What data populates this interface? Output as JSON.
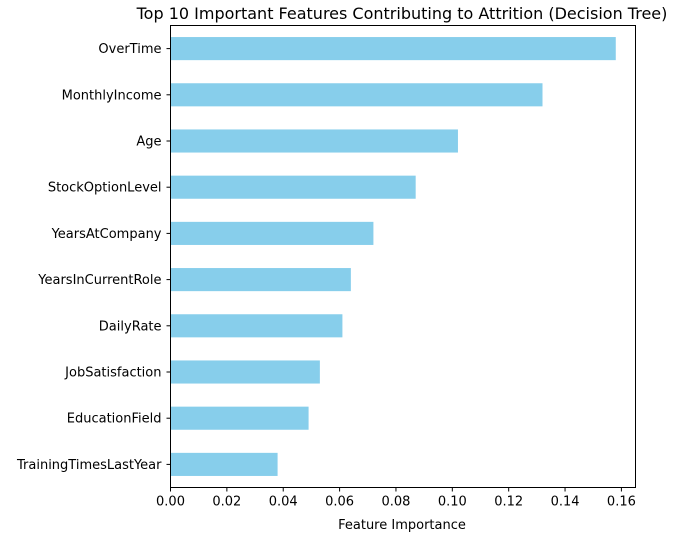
{
  "chart_data": {
    "type": "bar",
    "orientation": "horizontal",
    "title": "Top 10 Important Features Contributing to Attrition (Decision Tree)",
    "xlabel": "Feature Importance",
    "ylabel": "",
    "categories": [
      "OverTime",
      "MonthlyIncome",
      "Age",
      "StockOptionLevel",
      "YearsAtCompany",
      "YearsInCurrentRole",
      "DailyRate",
      "JobSatisfaction",
      "EducationField",
      "TrainingTimesLastYear"
    ],
    "values": [
      0.158,
      0.132,
      0.102,
      0.087,
      0.072,
      0.064,
      0.061,
      0.053,
      0.049,
      0.038
    ],
    "xlim": [
      0.0,
      0.165
    ],
    "xticks": [
      0.0,
      0.02,
      0.04,
      0.06,
      0.08,
      0.1,
      0.12,
      0.14,
      0.16
    ],
    "xtick_labels": [
      "0.00",
      "0.02",
      "0.04",
      "0.06",
      "0.08",
      "0.10",
      "0.12",
      "0.14",
      "0.16"
    ],
    "bar_color": "#87ceeb",
    "grid": false,
    "legend": "none"
  }
}
